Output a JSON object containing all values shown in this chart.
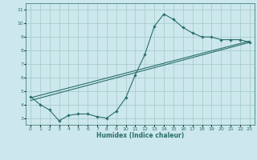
{
  "xlabel": "Humidex (Indice chaleur)",
  "bg_color": "#cce8ec",
  "grid_color": "#aacccc",
  "line_color": "#2a6e6a",
  "xlim": [
    -0.5,
    23.5
  ],
  "ylim": [
    2.5,
    11.5
  ],
  "xticks": [
    0,
    1,
    2,
    3,
    4,
    5,
    6,
    7,
    8,
    9,
    10,
    11,
    12,
    13,
    14,
    15,
    16,
    17,
    18,
    19,
    20,
    21,
    22,
    23
  ],
  "yticks": [
    3,
    4,
    5,
    6,
    7,
    8,
    9,
    10,
    11
  ],
  "series": [
    {
      "x": [
        0,
        1,
        2,
        3,
        4,
        5,
        6,
        7,
        8,
        9,
        10,
        11,
        12,
        13,
        14,
        15,
        16,
        17,
        18,
        19,
        20,
        21,
        22,
        23
      ],
      "y": [
        4.6,
        4.0,
        3.6,
        2.8,
        3.2,
        3.3,
        3.3,
        3.1,
        3.0,
        3.5,
        4.5,
        6.2,
        7.7,
        9.8,
        10.7,
        10.3,
        9.7,
        9.3,
        9.0,
        9.0,
        8.8,
        8.8,
        8.8,
        8.6
      ],
      "marker": "D",
      "markersize": 1.8,
      "lw": 0.8
    },
    {
      "x": [
        0,
        23
      ],
      "y": [
        4.5,
        8.7
      ],
      "marker": null,
      "markersize": 0,
      "lw": 0.8
    },
    {
      "x": [
        0,
        23
      ],
      "y": [
        4.3,
        8.6
      ],
      "marker": null,
      "markersize": 0,
      "lw": 0.8
    }
  ]
}
